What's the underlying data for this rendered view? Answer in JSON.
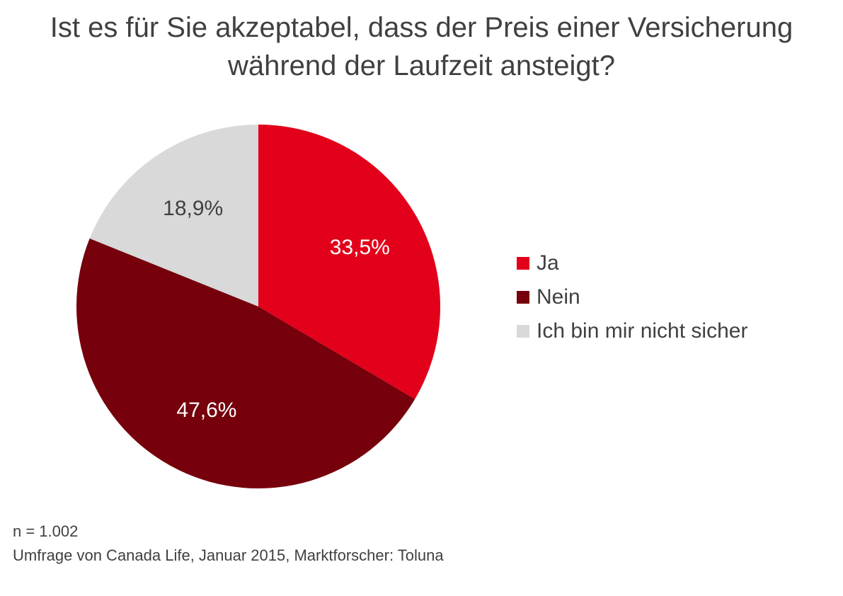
{
  "chart_data": {
    "type": "pie",
    "title_lines": [
      "Ist es für Sie akzeptabel, dass der Preis einer Versicherung",
      "während der Laufzeit ansteigt?"
    ],
    "start_angle_deg": 0,
    "direction": "clockwise",
    "legend_position": "right",
    "slices": [
      {
        "label": "Ja",
        "value": 33.5,
        "value_label": "33,5%",
        "color": "#E3001B",
        "label_color": "#ffffff"
      },
      {
        "label": "Nein",
        "value": 47.6,
        "value_label": "47,6%",
        "color": "#76000B",
        "label_color": "#ffffff"
      },
      {
        "label": "Ich bin mir nicht sicher",
        "value": 18.9,
        "value_label": "18,9%",
        "color": "#D9D9D9",
        "label_color": "#404040"
      }
    ]
  },
  "footnotes": {
    "sample": "n = 1.002",
    "source": "Umfrage von Canada Life, Januar 2015, Marktforscher: Toluna"
  }
}
